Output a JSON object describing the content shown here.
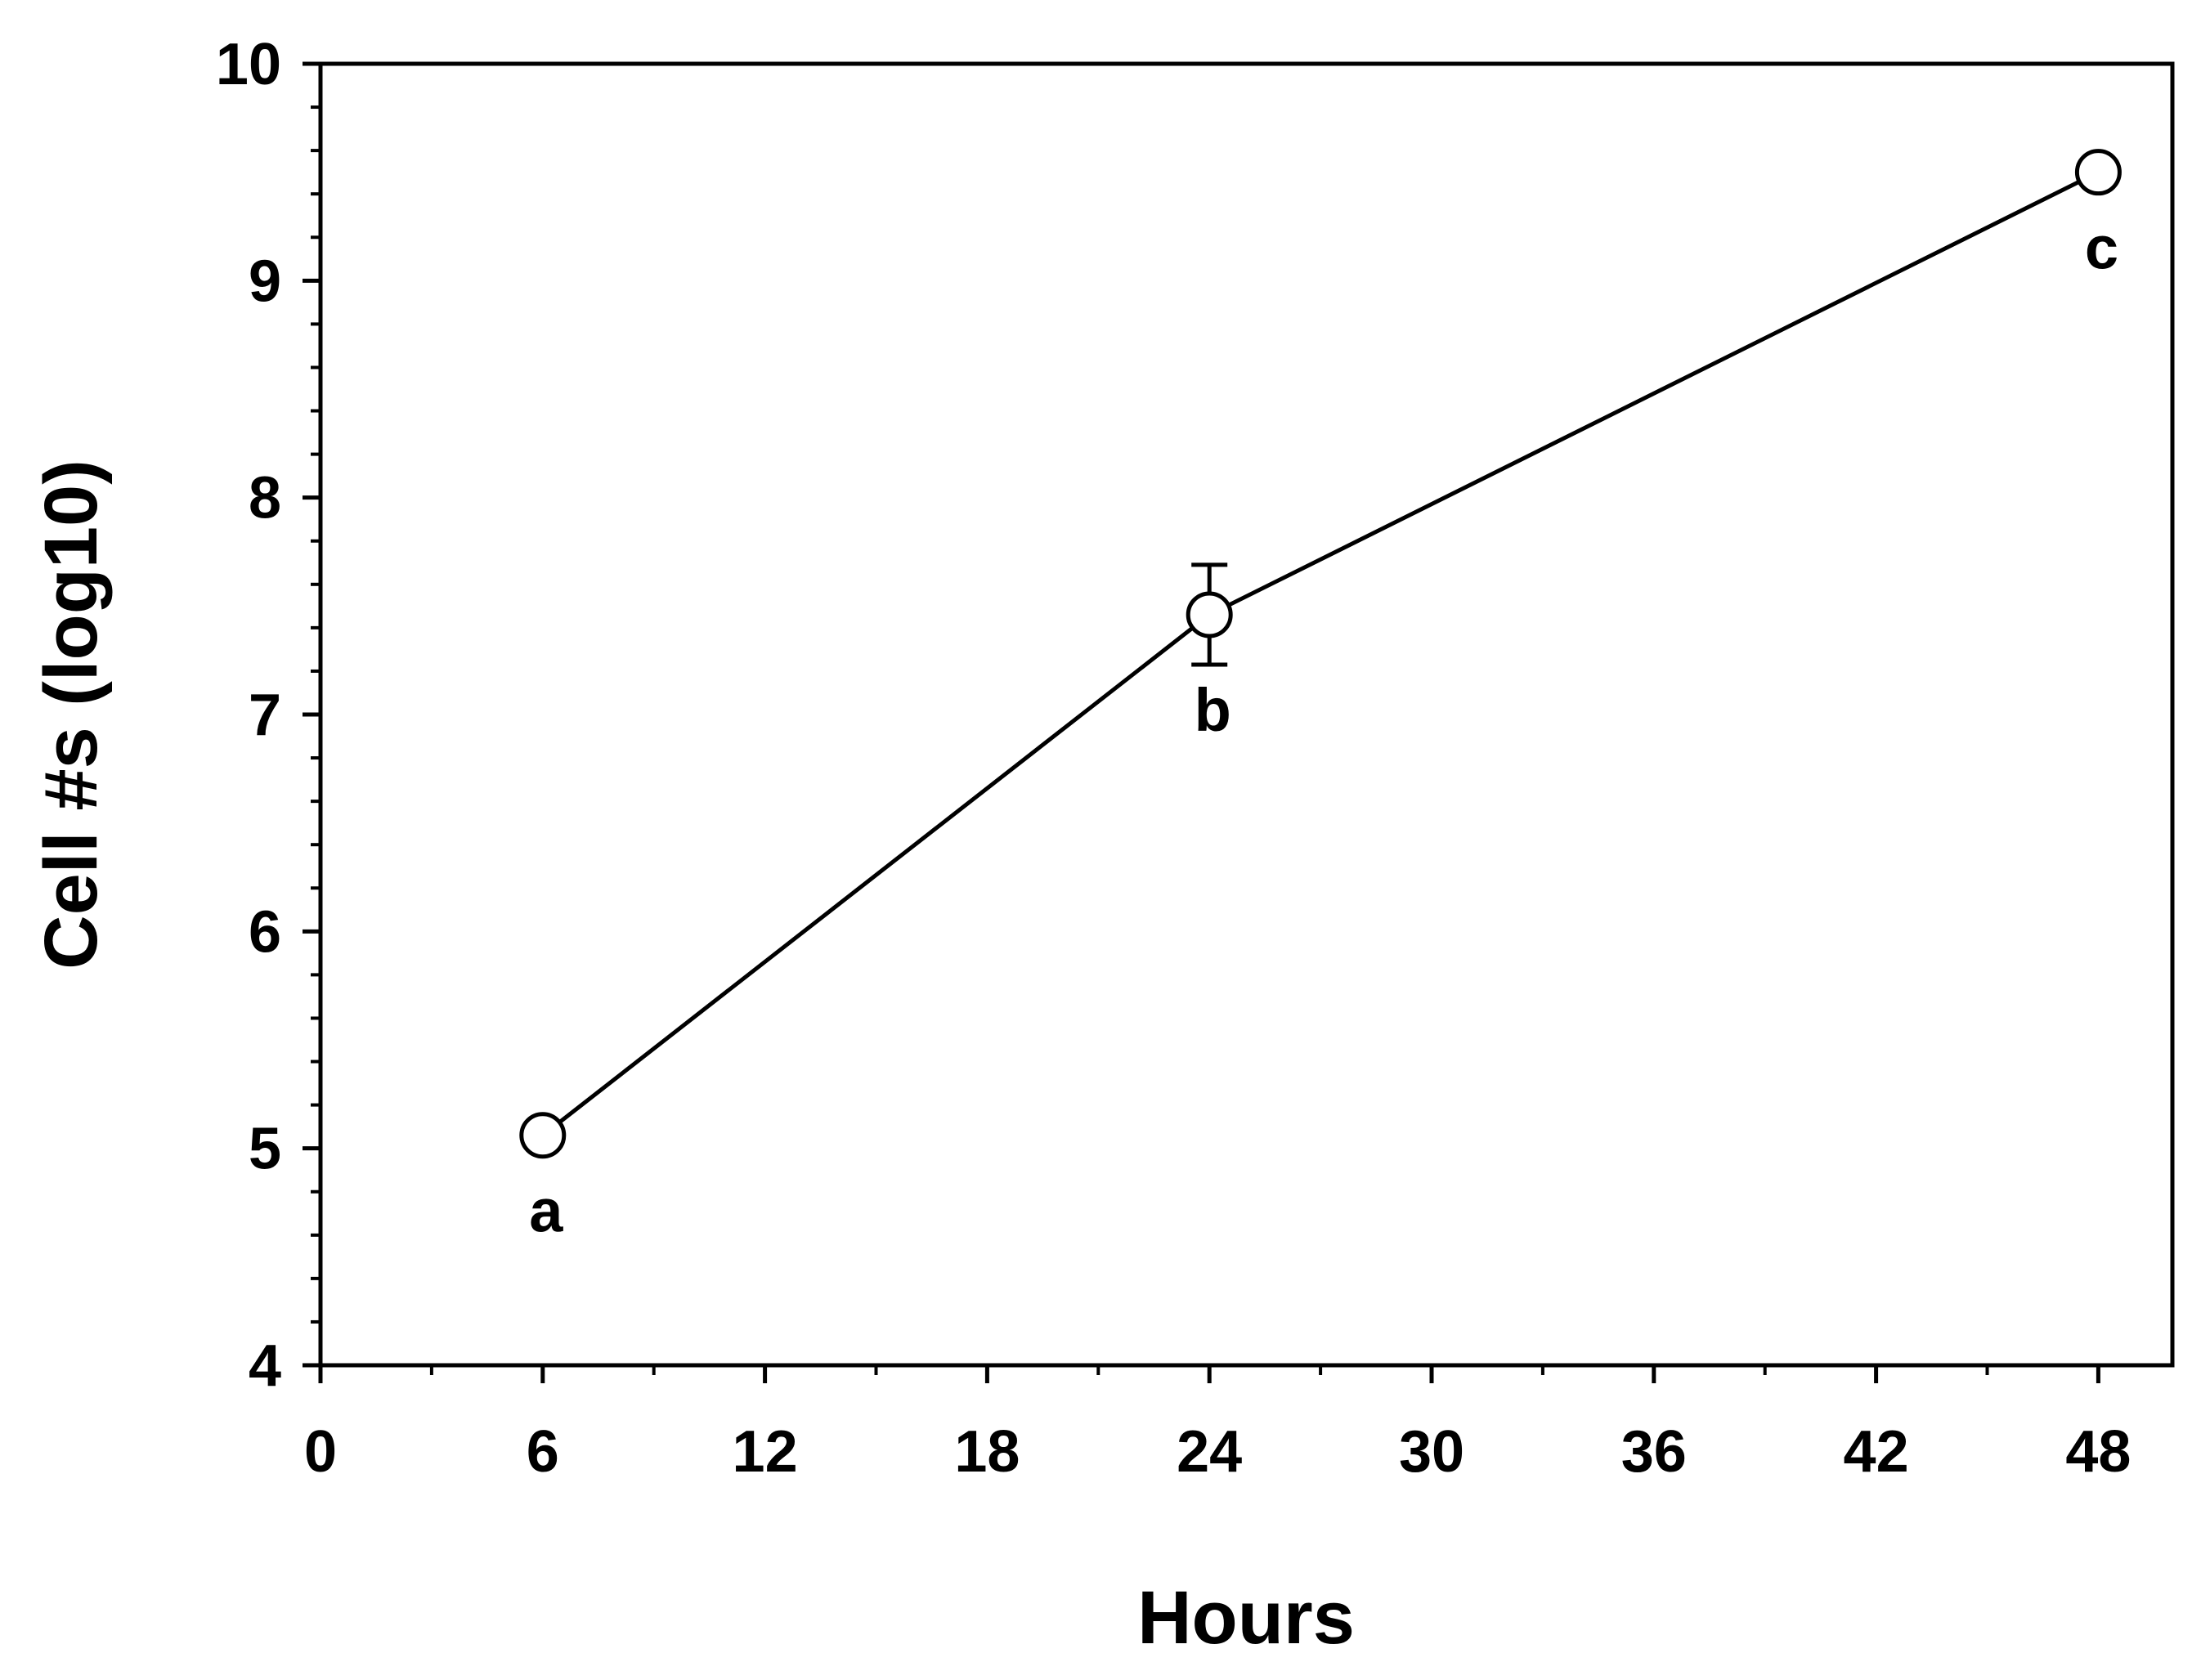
{
  "chart_data": {
    "type": "line",
    "xlabel": "Hours",
    "ylabel": "Cell #s (log10)",
    "xlim": [
      0,
      50
    ],
    "ylim": [
      4,
      10
    ],
    "x_ticks": [
      "0",
      "6",
      "12",
      "18",
      "24",
      "30",
      "36",
      "42",
      "48"
    ],
    "y_ticks": [
      "4",
      "5",
      "6",
      "7",
      "8",
      "9",
      "10"
    ],
    "series": [
      {
        "x": [
          6,
          24,
          48
        ],
        "y": [
          5.06,
          7.46,
          9.5
        ],
        "error": [
          0,
          0.23,
          0
        ],
        "marker": "open-circle",
        "point_labels": [
          "a",
          "b",
          "c"
        ]
      }
    ],
    "grid": false,
    "legend": "none",
    "colors": {
      "line": "#000000",
      "marker_fill": "#ffffff",
      "marker_stroke": "#000000"
    }
  }
}
